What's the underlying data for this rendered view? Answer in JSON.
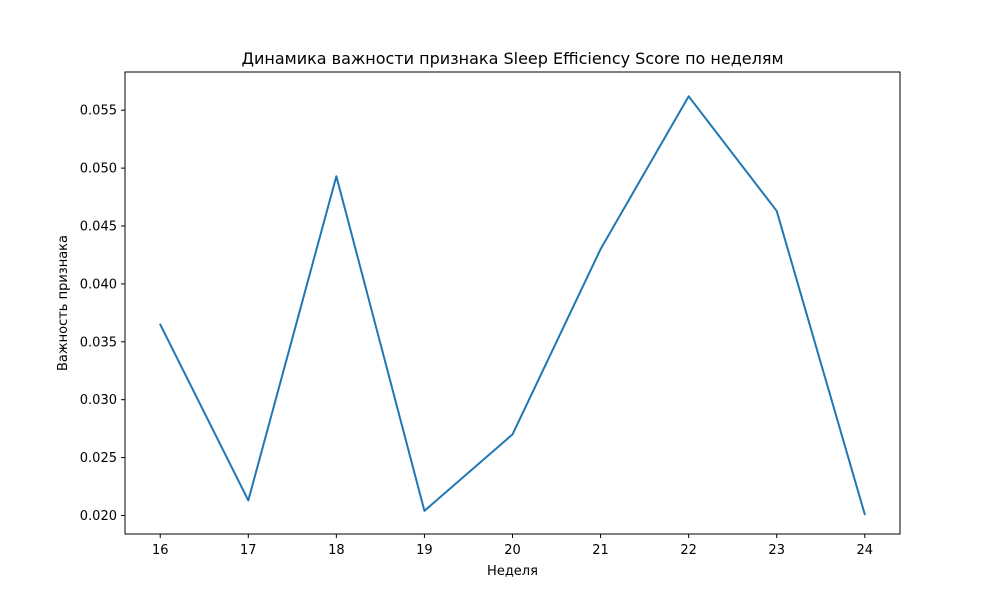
{
  "chart_data": {
    "type": "line",
    "title": "Динамика важности признака Sleep Efficiency Score по неделям",
    "xlabel": "Неделя",
    "ylabel": "Важность признака",
    "x": [
      16,
      17,
      18,
      19,
      20,
      21,
      22,
      23,
      24
    ],
    "series": [
      {
        "values": [
          0.0365,
          0.0213,
          0.0493,
          0.0204,
          0.027,
          0.043,
          0.0562,
          0.0463,
          0.0201
        ]
      }
    ],
    "xlim": [
      15.6,
      24.4
    ],
    "ylim": [
      0.0184,
      0.0583
    ],
    "xticks": [
      "16",
      "17",
      "18",
      "19",
      "20",
      "21",
      "22",
      "23",
      "24"
    ],
    "yticks": [
      0.02,
      0.025,
      0.03,
      0.035,
      0.04,
      0.045,
      0.05,
      0.055
    ],
    "ytick_labels": [
      "0.020",
      "0.025",
      "0.030",
      "0.035",
      "0.040",
      "0.045",
      "0.050",
      "0.055"
    ],
    "grid": false,
    "line_color": "#1f77b4"
  }
}
